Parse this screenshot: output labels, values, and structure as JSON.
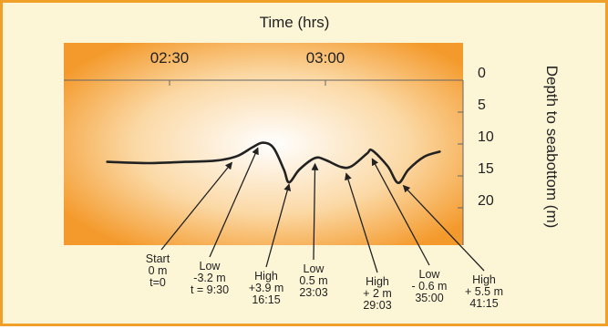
{
  "colors": {
    "frame_border": "#f0a028",
    "page_bg": "#fdf6d6",
    "plot_edge": "#f49a2c",
    "plot_center": "#ffffff",
    "line": "#222222"
  },
  "chart_data": {
    "type": "line",
    "title": "Time (hrs)",
    "xlabel": "Time (hrs)",
    "ylabel": "Depth to seabottom (m)",
    "x_ticks": [
      "02:30",
      "03:00"
    ],
    "y_ticks": [
      0,
      5,
      10,
      15,
      20
    ],
    "ylim": [
      0,
      22
    ],
    "y_inverted": true,
    "grid": false,
    "series": [
      {
        "points": [
          {
            "t": "02:18",
            "depth": 12.8
          },
          {
            "t": "02:26",
            "depth": 13.0
          },
          {
            "t": "02:33",
            "depth": 12.8
          },
          {
            "t": "02:39",
            "depth": 12.6
          },
          {
            "t": "02:43",
            "depth": 11.9
          },
          {
            "t": "02:46",
            "depth": 10.5
          },
          {
            "t": "02:48",
            "depth": 9.8
          },
          {
            "t": "02:50",
            "depth": 10.6
          },
          {
            "t": "02:52",
            "depth": 14.0
          },
          {
            "t": "02:53",
            "depth": 16.0
          },
          {
            "t": "02:55",
            "depth": 14.0
          },
          {
            "t": "02:58",
            "depth": 12.2
          },
          {
            "t": "03:00",
            "depth": 12.5
          },
          {
            "t": "03:03",
            "depth": 13.6
          },
          {
            "t": "03:05",
            "depth": 13.5
          },
          {
            "t": "03:08",
            "depth": 11.5
          },
          {
            "t": "03:09",
            "depth": 11.0
          },
          {
            "t": "03:12",
            "depth": 13.5
          },
          {
            "t": "03:14",
            "depth": 16.1
          },
          {
            "t": "03:16",
            "depth": 14.0
          },
          {
            "t": "03:19",
            "depth": 12.0
          },
          {
            "t": "03:22",
            "depth": 11.2
          }
        ]
      }
    ],
    "annotations": [
      {
        "lines": [
          "Start",
          "0 m",
          "t=0"
        ],
        "t": "02:42",
        "depth": 12.2
      },
      {
        "lines": [
          "Low",
          "-3.2 m",
          "t = 9:30"
        ],
        "t": "02:47",
        "depth": 9.9
      },
      {
        "lines": [
          "High",
          "+3.9 m",
          "16:15"
        ],
        "t": "02:53",
        "depth": 15.6
      },
      {
        "lines": [
          "Low",
          "0.5 m",
          "23:03"
        ],
        "t": "02:58",
        "depth": 12.4
      },
      {
        "lines": [
          "High",
          "+ 2 m",
          "29:03"
        ],
        "t": "03:04",
        "depth": 13.9
      },
      {
        "lines": [
          "Low",
          "- 0.6 m",
          "35:00"
        ],
        "t": "03:09",
        "depth": 11.6
      },
      {
        "lines": [
          "High",
          "+ 5.5 m",
          "41:15"
        ],
        "t": "03:15",
        "depth": 15.8
      }
    ]
  }
}
